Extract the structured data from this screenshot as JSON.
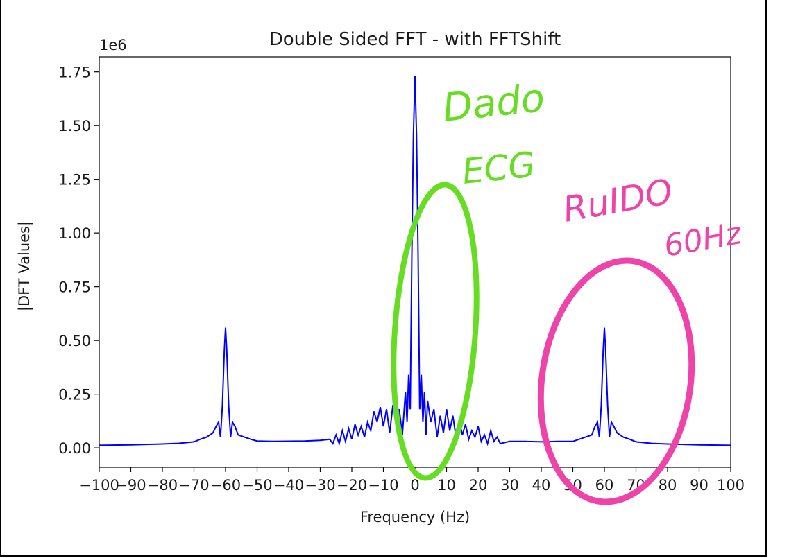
{
  "chart_data": {
    "type": "line",
    "title": "Double Sided FFT - with FFTShift",
    "xlabel": "Frequency (Hz)",
    "ylabel": "|DFT Values|",
    "offset_label": "1e6",
    "xlim": [
      -100,
      100
    ],
    "ylim": [
      -0.09,
      1.82
    ],
    "scale": 1000000,
    "x_ticks": [
      -100,
      -90,
      -80,
      -70,
      -60,
      -50,
      -40,
      -30,
      -20,
      -10,
      0,
      10,
      20,
      30,
      40,
      50,
      60,
      70,
      80,
      90,
      100
    ],
    "x_tick_labels": [
      "−100",
      "−90",
      "−80",
      "−70",
      "−60",
      "−50",
      "−40",
      "−30",
      "−20",
      "−10",
      "0",
      "10",
      "20",
      "30",
      "40",
      "50",
      "60",
      "70",
      "80",
      "90",
      "100"
    ],
    "y_ticks": [
      0.0,
      0.25,
      0.5,
      0.75,
      1.0,
      1.25,
      1.5,
      1.75
    ],
    "y_tick_labels": [
      "0.00",
      "0.25",
      "0.50",
      "0.75",
      "1.00",
      "1.25",
      "1.50",
      "1.75"
    ],
    "grid": false,
    "series": [
      {
        "name": "|DFT Values|",
        "color": "#0000ff",
        "x": [
          -100,
          -90,
          -80,
          -75,
          -70,
          -68,
          -66,
          -64,
          -63,
          -62.2,
          -61.6,
          -61,
          -60.4,
          -60,
          -59.6,
          -59,
          -58.4,
          -57.8,
          -57,
          -56,
          -54,
          -52,
          -50,
          -45,
          -40,
          -35,
          -30,
          -27,
          -26,
          -25,
          -24,
          -23,
          -22,
          -21,
          -20,
          -19,
          -18,
          -17,
          -16,
          -15,
          -14,
          -13,
          -12,
          -11,
          -10,
          -9,
          -8,
          -7,
          -6,
          -5,
          -4,
          -3,
          -2.5,
          -2,
          -1.5,
          -1,
          -0.5,
          0,
          0.5,
          1,
          1.5,
          2,
          2.5,
          3,
          3.5,
          4,
          5,
          6,
          7,
          8,
          9,
          10,
          11,
          12,
          13,
          14,
          15,
          16,
          17,
          18,
          19,
          20,
          21,
          22,
          23,
          24,
          25,
          26,
          27,
          30,
          35,
          40,
          45,
          50,
          52,
          54,
          56,
          57,
          57.8,
          58.4,
          59,
          59.6,
          60,
          60.4,
          61,
          61.6,
          62.2,
          63,
          64,
          66,
          68,
          70,
          75,
          80,
          90,
          100
        ],
        "y": [
          0.012,
          0.014,
          0.018,
          0.021,
          0.028,
          0.04,
          0.05,
          0.07,
          0.1,
          0.12,
          0.05,
          0.2,
          0.45,
          0.56,
          0.45,
          0.2,
          0.05,
          0.12,
          0.1,
          0.06,
          0.05,
          0.04,
          0.032,
          0.03,
          0.031,
          0.032,
          0.035,
          0.04,
          0.02,
          0.06,
          0.02,
          0.08,
          0.03,
          0.09,
          0.04,
          0.11,
          0.06,
          0.1,
          0.05,
          0.12,
          0.08,
          0.17,
          0.12,
          0.19,
          0.1,
          0.18,
          0.07,
          0.2,
          0.12,
          0.18,
          0.06,
          0.26,
          0.12,
          0.34,
          0.18,
          0.9,
          1.45,
          1.73,
          1.45,
          0.9,
          0.18,
          0.34,
          0.12,
          0.26,
          0.06,
          0.22,
          0.12,
          0.18,
          0.05,
          0.15,
          0.07,
          0.18,
          0.08,
          0.15,
          0.05,
          0.13,
          0.06,
          0.11,
          0.04,
          0.08,
          0.05,
          0.1,
          0.03,
          0.06,
          0.02,
          0.08,
          0.03,
          0.05,
          0.02,
          0.03,
          0.03,
          0.028,
          0.03,
          0.03,
          0.04,
          0.05,
          0.06,
          0.1,
          0.12,
          0.05,
          0.2,
          0.45,
          0.56,
          0.45,
          0.2,
          0.05,
          0.12,
          0.1,
          0.07,
          0.05,
          0.04,
          0.028,
          0.021,
          0.018,
          0.014,
          0.012
        ]
      }
    ]
  },
  "annotations": {
    "green_text_1": "Dado",
    "green_text_2": "ECG",
    "pink_text_1": "RuIDO",
    "pink_text_2": "60Hz",
    "green_color": "#66dd22",
    "pink_color": "#ee44aa"
  }
}
